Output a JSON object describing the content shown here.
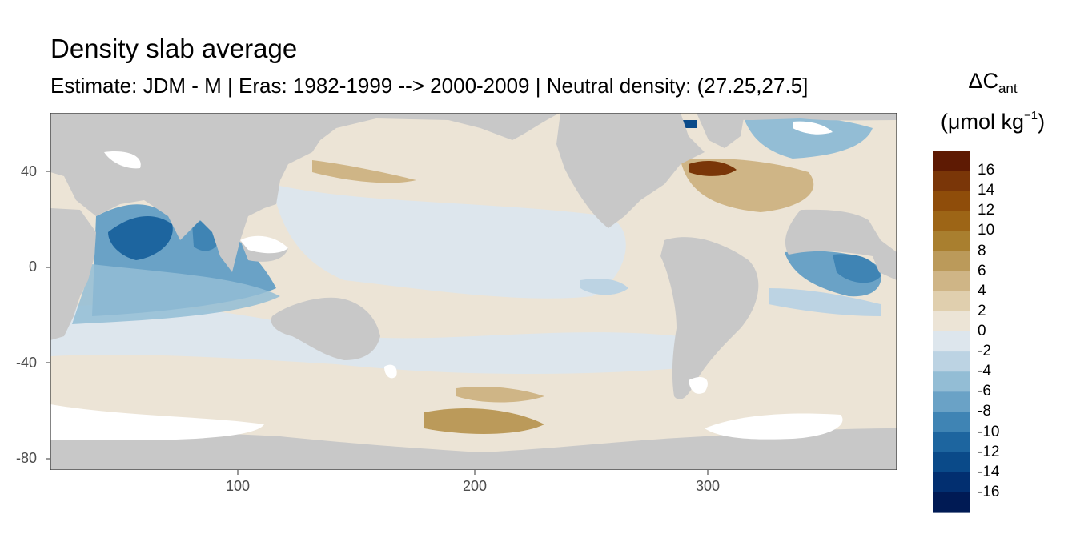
{
  "title": "Density slab average",
  "subtitle": "Estimate: JDM - M | Eras: 1982-1999 --> 2000-2009 | Neutral density: (27.25,27.5]",
  "legend": {
    "title_main": "ΔC",
    "title_sub": "ant",
    "unit_prefix": "(μmol kg",
    "unit_sup": "−1",
    "unit_suffix": ")",
    "labels": [
      "16",
      "14",
      "12",
      "10",
      "8",
      "6",
      "4",
      "2",
      "0",
      "-2",
      "-4",
      "-6",
      "-8",
      "-10",
      "-12",
      "-14",
      "-16"
    ],
    "colors": [
      "#5e1a03",
      "#7a3608",
      "#8f4d0a",
      "#9d6516",
      "#a97f2f",
      "#bb9a5a",
      "#cfb586",
      "#e0cfae",
      "#ece4d6",
      "#dde6ed",
      "#bcd3e3",
      "#93bdd5",
      "#6aa2c6",
      "#3f84b4",
      "#1d659f",
      "#0a4a89",
      "#022f70",
      "#001a54"
    ]
  },
  "axes": {
    "y_ticks": [
      "40",
      "0",
      "-40",
      "-80"
    ],
    "x_ticks": [
      "100",
      "200",
      "300"
    ]
  },
  "map_colors": {
    "land": "#c8c8c8",
    "no_data": "#ffffff",
    "panel_border": "#333333"
  }
}
